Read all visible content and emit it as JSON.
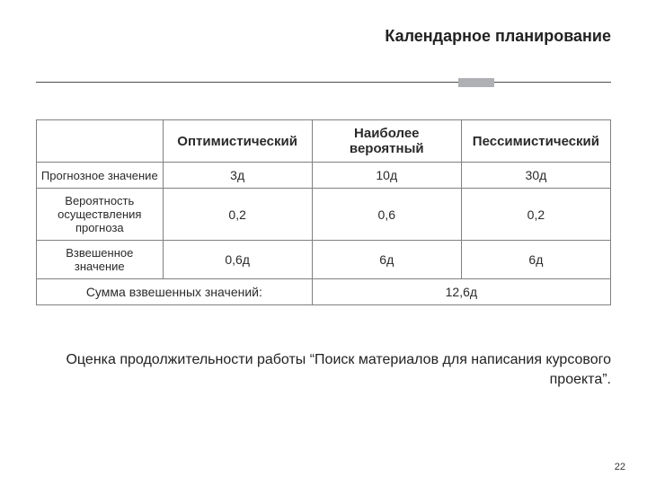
{
  "title": "Календарное планирование",
  "table": {
    "columns": [
      "",
      "Оптимистический",
      "Наиболее вероятный",
      "Пессимистический"
    ],
    "rows": [
      {
        "label": "Прогнозное значение",
        "cells": [
          "3д",
          "10д",
          "30д"
        ]
      },
      {
        "label": "Вероятность осуществления прогноза",
        "cells": [
          "0,2",
          "0,6",
          "0,2"
        ]
      },
      {
        "label": "Взвешенное значение",
        "cells": [
          "0,6д",
          "6д",
          "6д"
        ]
      }
    ],
    "summary": {
      "label": "Сумма взвешенных  значений:",
      "value": "12,6д"
    },
    "col_widths_pct": [
      22,
      26,
      26,
      26
    ],
    "border_color": "#808080",
    "header_fontsize": 15,
    "cell_fontsize": 14,
    "rowhead_fontsize": 13,
    "text_color": "#2a2a2a"
  },
  "caption": "Оценка продолжительности работы “Поиск материалов для написания курсового проекта”.",
  "page_number": "22",
  "layout": {
    "slide_w": 720,
    "slide_h": 540,
    "background": "#ffffff",
    "title_color": "#222222",
    "title_fontsize": 18,
    "rule_color": "#4d4d4d",
    "rule_block_color": "#aeb0b3",
    "caption_fontsize": 16,
    "pagenum_fontsize": 11,
    "font_family": "Arial"
  }
}
